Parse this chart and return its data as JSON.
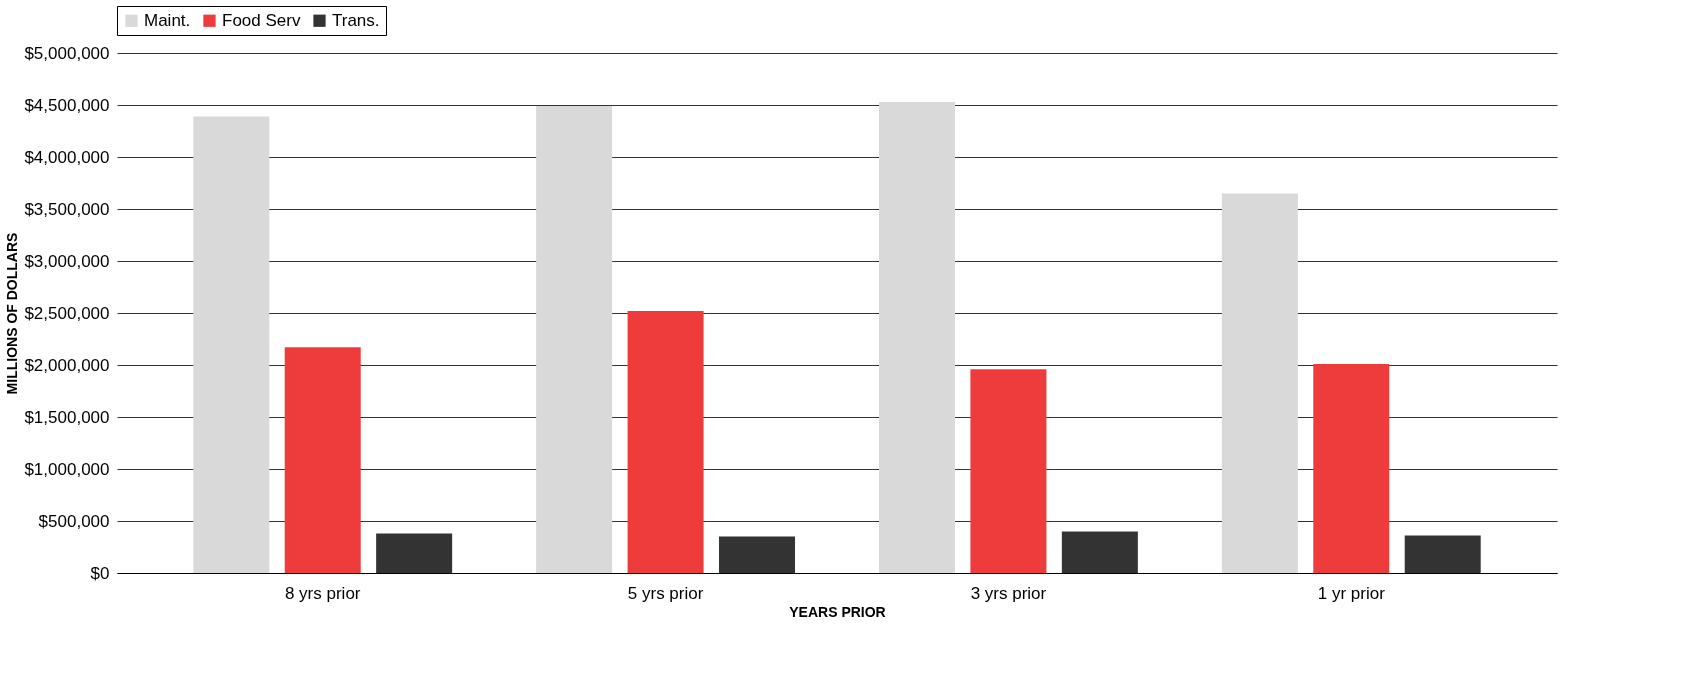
{
  "chart_data": {
    "type": "bar",
    "xlabel": "YEARS PRIOR",
    "ylabel": "MILLIONS OF DOLLARS",
    "categories": [
      "8 yrs prior",
      "5 yrs prior",
      "3 yrs prior",
      "1 yr prior"
    ],
    "series": [
      {
        "name": "Maint.",
        "color": "#d9d9d9",
        "values": [
          4390000,
          4490000,
          4530000,
          3650000
        ]
      },
      {
        "name": "Food Serv",
        "color": "#ee3b3b",
        "values": [
          2170000,
          2520000,
          1960000,
          2010000
        ]
      },
      {
        "name": "Trans.",
        "color": "#333333",
        "values": [
          380000,
          350000,
          400000,
          360000
        ]
      }
    ],
    "ylim": [
      0,
      5000000
    ],
    "yticks": [
      {
        "value": 0,
        "label": "$0"
      },
      {
        "value": 500000,
        "label": "$500,000"
      },
      {
        "value": 1000000,
        "label": "$1,000,000"
      },
      {
        "value": 1500000,
        "label": "$1,500,000"
      },
      {
        "value": 2000000,
        "label": "$2,000,000"
      },
      {
        "value": 2500000,
        "label": "$2,500,000"
      },
      {
        "value": 3000000,
        "label": "$3,000,000"
      },
      {
        "value": 3500000,
        "label": "$3,500,000"
      },
      {
        "value": 4000000,
        "label": "$4,000,000"
      },
      {
        "value": 4500000,
        "label": "$4,500,000"
      },
      {
        "value": 5000000,
        "label": "$5,000,000"
      }
    ],
    "grid": "y",
    "legend": "top"
  }
}
